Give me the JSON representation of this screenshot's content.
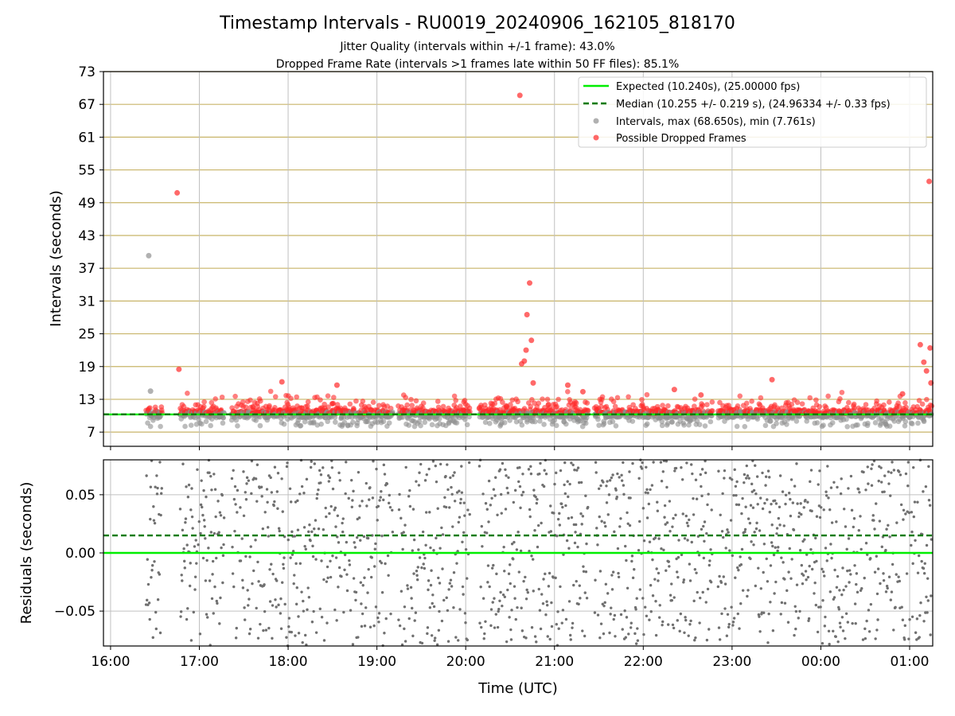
{
  "chart_data": {
    "type": "scatter",
    "title": "Timestamp Intervals - RU0019_20240906_162105_818170",
    "subtitles": [
      "Jitter Quality (intervals within +/-1 frame): 43.0%",
      "Dropped Frame Rate (intervals >1 frames late within 50 FF files): 85.1%"
    ],
    "xlabel": "Time (UTC)",
    "x_range_hours": [
      15.92,
      25.26
    ],
    "x_ticks": [
      {
        "h": 16,
        "label": "16:00"
      },
      {
        "h": 17,
        "label": "17:00"
      },
      {
        "h": 18,
        "label": "18:00"
      },
      {
        "h": 19,
        "label": "19:00"
      },
      {
        "h": 20,
        "label": "20:00"
      },
      {
        "h": 21,
        "label": "21:00"
      },
      {
        "h": 22,
        "label": "22:00"
      },
      {
        "h": 23,
        "label": "23:00"
      },
      {
        "h": 24,
        "label": "00:00"
      },
      {
        "h": 25,
        "label": "01:00"
      }
    ],
    "top_panel": {
      "ylabel": "Intervals (seconds)",
      "ylim": [
        4.4,
        73
      ],
      "y_ticks": [
        "7",
        "13",
        "19",
        "25",
        "31",
        "37",
        "43",
        "49",
        "55",
        "61",
        "67",
        "73"
      ],
      "expected_interval": 10.24,
      "median_interval": 10.255,
      "colors": {
        "expected": "#00ee00",
        "median": "#007a00",
        "interval": "#909090",
        "dropped": "#ff2a2a",
        "hline": "#c8b468",
        "grid": "#c0c0c0"
      },
      "legend": [
        {
          "type": "line",
          "label": "Expected (10.240s), (25.00000 fps)"
        },
        {
          "type": "dashed",
          "label": "Median (10.255 +/- 0.219 s), (24.96334 +/- 0.33 fps)"
        },
        {
          "type": "gray-dot",
          "label": "Intervals, max (68.650s), min (7.761s)"
        },
        {
          "type": "red-dot",
          "label": "Possible Dropped Frames"
        }
      ],
      "notable_points": [
        {
          "x": 16.43,
          "y": 39.3,
          "kind": "interval"
        },
        {
          "x": 16.45,
          "y": 14.5,
          "kind": "interval"
        },
        {
          "x": 16.75,
          "y": 50.8,
          "kind": "dropped"
        },
        {
          "x": 16.77,
          "y": 18.5,
          "kind": "dropped"
        },
        {
          "x": 17.93,
          "y": 16.2,
          "kind": "dropped"
        },
        {
          "x": 18.55,
          "y": 15.6,
          "kind": "dropped"
        },
        {
          "x": 20.61,
          "y": 68.65,
          "kind": "dropped"
        },
        {
          "x": 20.63,
          "y": 19.5,
          "kind": "dropped"
        },
        {
          "x": 20.66,
          "y": 20.0,
          "kind": "dropped"
        },
        {
          "x": 20.68,
          "y": 22.0,
          "kind": "dropped"
        },
        {
          "x": 20.69,
          "y": 28.5,
          "kind": "dropped"
        },
        {
          "x": 20.72,
          "y": 34.3,
          "kind": "dropped"
        },
        {
          "x": 20.74,
          "y": 23.8,
          "kind": "dropped"
        },
        {
          "x": 20.76,
          "y": 16.0,
          "kind": "dropped"
        },
        {
          "x": 21.15,
          "y": 15.6,
          "kind": "dropped"
        },
        {
          "x": 21.32,
          "y": 14.4,
          "kind": "dropped"
        },
        {
          "x": 22.35,
          "y": 14.8,
          "kind": "dropped"
        },
        {
          "x": 22.65,
          "y": 13.8,
          "kind": "dropped"
        },
        {
          "x": 23.45,
          "y": 16.6,
          "kind": "dropped"
        },
        {
          "x": 24.92,
          "y": 14.0,
          "kind": "dropped"
        },
        {
          "x": 25.12,
          "y": 23.0,
          "kind": "dropped"
        },
        {
          "x": 25.16,
          "y": 19.8,
          "kind": "dropped"
        },
        {
          "x": 25.19,
          "y": 18.2,
          "kind": "dropped"
        },
        {
          "x": 25.22,
          "y": 52.9,
          "kind": "dropped"
        },
        {
          "x": 25.23,
          "y": 22.4,
          "kind": "dropped"
        },
        {
          "x": 25.24,
          "y": 16.0,
          "kind": "dropped"
        }
      ]
    },
    "bottom_panel": {
      "ylabel": "Residuals (seconds)",
      "ylim": [
        -0.08,
        0.08
      ],
      "y_ticks": [
        {
          "v": 0.05,
          "label": "0.05"
        },
        {
          "v": 0.0,
          "label": "0.00"
        },
        {
          "v": -0.05,
          "label": "−0.05"
        }
      ],
      "expected_residual": 0.0,
      "median_residual": 0.015,
      "colors": {
        "expected": "#00ee00",
        "median": "#007a00",
        "points": "#707070",
        "grid": "#c0c0c0"
      }
    }
  }
}
